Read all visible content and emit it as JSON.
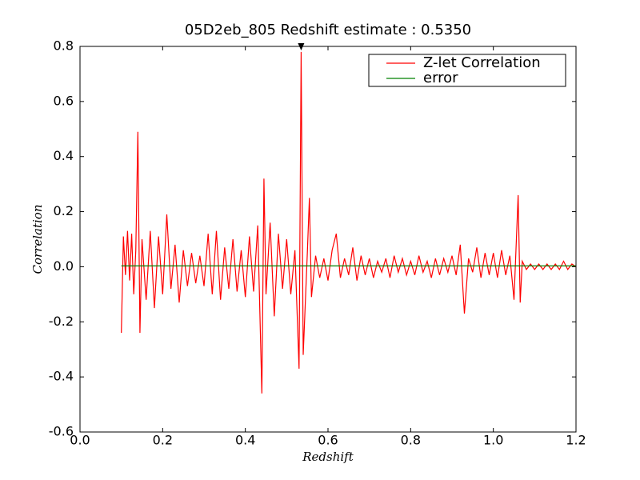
{
  "chart_data": {
    "type": "line",
    "title": "05D2eb_805 Redshift estimate : 0.5350",
    "xlabel": "Redshift",
    "ylabel": "Correlation",
    "xlim": [
      0,
      1.2
    ],
    "ylim": [
      -0.6,
      0.8
    ],
    "xticks": [
      {
        "value": 0,
        "label": "0.0"
      },
      0.2,
      0.4,
      0.6,
      0.8,
      {
        "value": 1,
        "label": "1.0"
      },
      1.2
    ],
    "yticks": [
      -0.6,
      -0.4,
      -0.2,
      {
        "value": 0,
        "label": "0.0"
      },
      0.2,
      0.4,
      0.6,
      0.8
    ],
    "legend": "upper right",
    "marker": {
      "x": 0.535,
      "y": 0.8,
      "color": "#000000"
    },
    "series": [
      {
        "name": "Z-let Correlation",
        "color": "#ff0000",
        "x": [
          0.1,
          0.105,
          0.11,
          0.115,
          0.12,
          0.125,
          0.13,
          0.135,
          0.14,
          0.145,
          0.15,
          0.16,
          0.17,
          0.18,
          0.19,
          0.2,
          0.21,
          0.22,
          0.23,
          0.24,
          0.25,
          0.26,
          0.27,
          0.28,
          0.29,
          0.3,
          0.31,
          0.32,
          0.33,
          0.34,
          0.35,
          0.36,
          0.37,
          0.38,
          0.39,
          0.4,
          0.41,
          0.42,
          0.43,
          0.44,
          0.445,
          0.45,
          0.46,
          0.47,
          0.48,
          0.49,
          0.5,
          0.51,
          0.52,
          0.53,
          0.535,
          0.54,
          0.55,
          0.555,
          0.56,
          0.57,
          0.58,
          0.59,
          0.6,
          0.61,
          0.62,
          0.63,
          0.64,
          0.65,
          0.66,
          0.67,
          0.68,
          0.69,
          0.7,
          0.71,
          0.72,
          0.73,
          0.74,
          0.75,
          0.76,
          0.77,
          0.78,
          0.79,
          0.8,
          0.81,
          0.82,
          0.83,
          0.84,
          0.85,
          0.86,
          0.87,
          0.88,
          0.89,
          0.9,
          0.91,
          0.92,
          0.93,
          0.94,
          0.95,
          0.96,
          0.97,
          0.98,
          0.99,
          1.0,
          1.01,
          1.02,
          1.03,
          1.04,
          1.05,
          1.06,
          1.065,
          1.07,
          1.08,
          1.09,
          1.1,
          1.11,
          1.12,
          1.13,
          1.14,
          1.15,
          1.16,
          1.17,
          1.18,
          1.19,
          1.2
        ],
        "values": [
          -0.24,
          0.11,
          -0.03,
          0.13,
          -0.05,
          0.12,
          -0.1,
          0.06,
          0.49,
          -0.24,
          0.1,
          -0.12,
          0.13,
          -0.15,
          0.11,
          -0.1,
          0.19,
          -0.08,
          0.08,
          -0.13,
          0.06,
          -0.07,
          0.05,
          -0.06,
          0.04,
          -0.07,
          0.12,
          -0.1,
          0.13,
          -0.12,
          0.07,
          -0.08,
          0.1,
          -0.09,
          0.06,
          -0.11,
          0.11,
          -0.09,
          0.15,
          -0.46,
          0.32,
          -0.1,
          0.16,
          -0.18,
          0.12,
          -0.08,
          0.1,
          -0.1,
          0.06,
          -0.37,
          0.78,
          -0.32,
          0.05,
          0.25,
          -0.11,
          0.04,
          -0.04,
          0.03,
          -0.05,
          0.06,
          0.12,
          -0.04,
          0.03,
          -0.03,
          0.07,
          -0.05,
          0.04,
          -0.03,
          0.03,
          -0.04,
          0.02,
          -0.02,
          0.03,
          -0.04,
          0.04,
          -0.02,
          0.03,
          -0.03,
          0.02,
          -0.03,
          0.04,
          -0.02,
          0.02,
          -0.04,
          0.03,
          -0.03,
          0.03,
          -0.02,
          0.04,
          -0.03,
          0.08,
          -0.17,
          0.03,
          -0.02,
          0.07,
          -0.04,
          0.05,
          -0.03,
          0.05,
          -0.04,
          0.06,
          -0.03,
          0.04,
          -0.12,
          0.26,
          -0.13,
          0.02,
          -0.01,
          0.01,
          -0.01,
          0.01,
          -0.01,
          0.01,
          -0.01,
          0.01,
          -0.01,
          0.02,
          -0.01,
          0.01,
          0
        ]
      },
      {
        "name": "error",
        "color": "#008000",
        "x": [
          0.1,
          1.2
        ],
        "values": [
          0.003,
          0.003
        ]
      }
    ]
  }
}
